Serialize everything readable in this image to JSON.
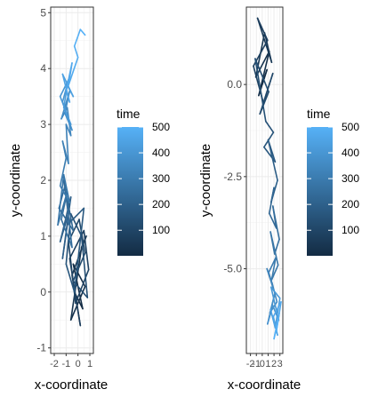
{
  "chart_data": [
    {
      "type": "line",
      "xlabel": "x-coordinate",
      "ylabel": "y-coordinate",
      "xlim": [
        -2.3,
        1.3
      ],
      "ylim": [
        -1.1,
        5.1
      ],
      "xticks": [
        -2,
        -1,
        0,
        1
      ],
      "xtick_labels": [
        "-2",
        "-1",
        "0",
        "1"
      ],
      "yticks": [
        -1,
        0,
        1,
        2,
        3,
        4,
        5
      ],
      "ytick_labels": [
        "-1",
        "0",
        "1",
        "2",
        "3",
        "4",
        "5"
      ],
      "grid": true,
      "color_scale": {
        "title": "time",
        "min": 1,
        "max": 500,
        "ticks": [
          100,
          200,
          300,
          400,
          500
        ],
        "low_color": "#132B43",
        "high_color": "#56B1F7"
      },
      "legend_position": "right",
      "path": {
        "x": [
          -0.3,
          0.4,
          -0.4,
          0.6,
          -0.6,
          0.3,
          0.7,
          -0.5,
          0.2,
          -0.7,
          0.5,
          0.9,
          -0.2,
          -0.8,
          0.1,
          0.6,
          -0.4,
          0.8,
          0.3,
          -0.6,
          -1.0,
          -0.3,
          0.5,
          -0.9,
          -1.3,
          -0.6,
          -1.5,
          -0.8,
          -1.2,
          -0.4,
          -1.6,
          -1.1,
          -0.5,
          -1.4,
          -0.9,
          -1.7,
          -1.2,
          -0.7,
          -1.5,
          -1.0,
          -1.3,
          -0.8,
          -1.0,
          -0.6,
          -0.9,
          -1.4,
          -0.7,
          -1.1,
          -0.5,
          -1.3,
          -0.8,
          -1.5,
          -0.6,
          -1.2,
          -0.9,
          -0.4,
          -1.3,
          -0.7,
          -1.0,
          -0.5,
          -0.8,
          0.0,
          -0.3,
          0.2,
          0.6
        ],
        "y": [
          0.0,
          -0.3,
          0.5,
          0.1,
          -0.5,
          0.8,
          1.0,
          0.3,
          -0.6,
          0.6,
          1.1,
          0.4,
          -0.2,
          0.9,
          1.3,
          0.7,
          0.2,
          -0.1,
          1.0,
          1.4,
          0.5,
          0.0,
          1.5,
          1.2,
          0.6,
          1.7,
          0.9,
          1.4,
          2.0,
          1.1,
          1.5,
          1.9,
          0.8,
          1.3,
          1.8,
          1.2,
          2.1,
          1.6,
          1.9,
          2.4,
          2.7,
          2.3,
          3.0,
          2.8,
          3.3,
          3.1,
          3.6,
          3.2,
          2.9,
          3.4,
          3.8,
          3.5,
          3.0,
          3.3,
          3.7,
          3.5,
          3.9,
          3.4,
          3.6,
          4.1,
          3.7,
          4.2,
          4.4,
          4.7,
          4.6
        ]
      }
    },
    {
      "type": "line",
      "xlabel": "x-coordinate",
      "ylabel": "y-coordinate",
      "xlim": [
        -2.7,
        3.5
      ],
      "ylim": [
        -7.3,
        2.1
      ],
      "xticks": [
        -2,
        -1,
        0,
        1,
        2,
        3
      ],
      "xtick_labels": [
        "-2",
        "-1",
        "0",
        "1",
        "2",
        "3"
      ],
      "yticks": [
        -5,
        -2.5,
        0
      ],
      "ytick_labels": [
        "-5.0",
        "-2.5",
        "0.0"
      ],
      "grid": true,
      "color_scale": {
        "title": "time",
        "min": 1,
        "max": 500,
        "ticks": [
          100,
          200,
          300,
          400,
          500
        ],
        "low_color": "#132B43",
        "high_color": "#56B1F7"
      },
      "legend_position": "right",
      "path": {
        "x": [
          0.0,
          0.8,
          -0.6,
          1.2,
          -1.1,
          0.4,
          1.6,
          -0.8,
          0.9,
          -1.5,
          0.2,
          1.8,
          -0.4,
          1.1,
          -1.2,
          0.6,
          1.9,
          0.3,
          2.2,
          1.0,
          2.6,
          1.5,
          2.0,
          1.2,
          2.4,
          1.8,
          2.9,
          2.1,
          1.4,
          2.7,
          1.6,
          2.3,
          1.1,
          2.0,
          0.8,
          1.7,
          2.5,
          1.3,
          2.1,
          0.9,
          1.8,
          2.8,
          1.5,
          3.0,
          2.2,
          1.4,
          2.6,
          1.9,
          3.2,
          2.4,
          2.9,
          2.0,
          2.7
        ],
        "y": [
          0.0,
          0.4,
          -0.3,
          0.9,
          0.2,
          1.4,
          0.6,
          1.8,
          1.2,
          0.5,
          -0.5,
          0.3,
          -0.8,
          -0.2,
          0.7,
          -1.0,
          -1.3,
          -1.7,
          -2.1,
          -1.5,
          -2.6,
          -3.2,
          -2.8,
          -3.5,
          -3.9,
          -3.3,
          -4.2,
          -4.6,
          -4.0,
          -4.9,
          -5.3,
          -4.7,
          -5.1,
          -5.6,
          -5.0,
          -5.4,
          -5.9,
          -6.2,
          -5.7,
          -6.5,
          -6.0,
          -6.4,
          -5.5,
          -5.8,
          -6.6,
          -6.1,
          -6.8,
          -6.3,
          -5.9,
          -6.7,
          -6.2,
          -6.9,
          -6.4
        ]
      }
    }
  ]
}
